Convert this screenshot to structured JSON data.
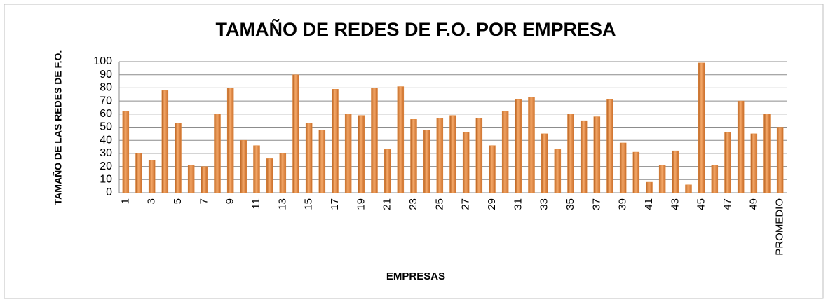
{
  "chart_data": {
    "type": "bar",
    "title": "TAMAÑO DE REDES DE F.O. POR EMPRESA",
    "x_label": "EMPRESAS",
    "y_label": "TAMAÑO DE LAS REDES DE F.O.",
    "categories": [
      "1",
      null,
      "3",
      null,
      "5",
      null,
      "7",
      null,
      "9",
      null,
      "11",
      null,
      "13",
      null,
      "15",
      null,
      "17",
      null,
      "19",
      null,
      "21",
      null,
      "23",
      null,
      "25",
      null,
      "27",
      null,
      "29",
      null,
      "31",
      null,
      "33",
      null,
      "35",
      null,
      "37",
      null,
      "39",
      null,
      "41",
      null,
      "43",
      null,
      "45",
      null,
      "47",
      null,
      "49",
      null,
      "PROMEDIO"
    ],
    "values": [
      62,
      30,
      25,
      78,
      53,
      21,
      20,
      60,
      80,
      40,
      36,
      26,
      30,
      90,
      53,
      48,
      79,
      60,
      59,
      80,
      33,
      81,
      56,
      48,
      57,
      59,
      46,
      57,
      36,
      62,
      71,
      73,
      45,
      33,
      60,
      55,
      58,
      71,
      38,
      31,
      8,
      21,
      32,
      6,
      99,
      21,
      46,
      70,
      45,
      60,
      50
    ],
    "color": "#e0883c",
    "ylim": [
      0,
      100
    ],
    "yticks": [
      0,
      10,
      20,
      30,
      40,
      50,
      60,
      70,
      80,
      90,
      100
    ],
    "grid": true
  }
}
